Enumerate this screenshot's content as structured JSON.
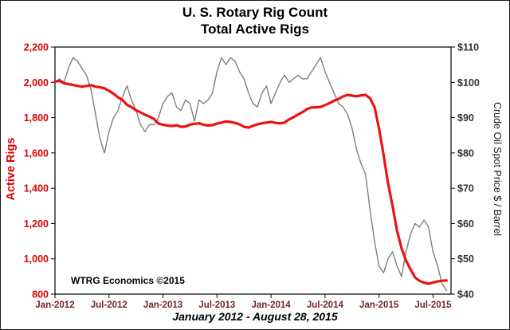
{
  "chart": {
    "title_line1": "U. S. Rotary Rig Count",
    "title_line2": "Total Active Rigs",
    "subtitle": "January 2012 - August 28, 2015",
    "attribution": "WTRG Economics  ©2015",
    "left_axis": {
      "label": "Active Rigs",
      "ticks": [
        "2,200",
        "2,000",
        "1,800",
        "1,600",
        "1,400",
        "1,200",
        "1,000",
        "800"
      ],
      "min": 800,
      "max": 2200,
      "color": "#dd0000"
    },
    "right_axis": {
      "label": "Crude Oil Spot Price $ / Barrel",
      "ticks": [
        "$110",
        "$100",
        "$90",
        "$80",
        "$70",
        "$60",
        "$50",
        "$40"
      ],
      "min": 40,
      "max": 110,
      "color": "#333333"
    },
    "x_axis": {
      "tick_labels": [
        "Jan-2012",
        "Jul-2012",
        "Jan-2013",
        "Jul-2013",
        "Jan-2014",
        "Jul-2014",
        "Jan-2015",
        "Jul-2015"
      ],
      "tick_positions": [
        0,
        6,
        12,
        18,
        24,
        30,
        36,
        42
      ],
      "domain": [
        0,
        44
      ],
      "color": "#7b2222"
    }
  },
  "chart_data": {
    "type": "line",
    "title": "U. S. Rotary Rig Count — Total Active Rigs",
    "x_unit": "months since Jan-2012 (0.5 = second half of month)",
    "x_start": 0,
    "x_step": 0.5,
    "grid": false,
    "legend": "none",
    "series": [
      {
        "name": "Crude Oil Spot Price",
        "axis": "right",
        "color": "#7f7f7f",
        "width": 1.4,
        "values": [
          100,
          101,
          100,
          104,
          107,
          106,
          104,
          102,
          98,
          91,
          84,
          80,
          86,
          90,
          92,
          96,
          99,
          95,
          92,
          88,
          86,
          88,
          88,
          90,
          94,
          96,
          97,
          93,
          92,
          95,
          94,
          89,
          95,
          94,
          95,
          97,
          103,
          107,
          105,
          107,
          106,
          103,
          101,
          97,
          94,
          93,
          97,
          99,
          94,
          97,
          100,
          102,
          100,
          101,
          102,
          101,
          101,
          103,
          105,
          107,
          103,
          100,
          97,
          94,
          93,
          91,
          87,
          81,
          77,
          74,
          64,
          55,
          48,
          46,
          50,
          52,
          48,
          45,
          52,
          57,
          60,
          59,
          61,
          59,
          52,
          48,
          43,
          41
        ]
      },
      {
        "name": "Active Rigs",
        "axis": "left",
        "color": "#ee1111",
        "width": 3.2,
        "values": [
          2005,
          2008,
          1995,
          1990,
          1985,
          1980,
          1975,
          1980,
          1984,
          1975,
          1972,
          1966,
          1952,
          1936,
          1915,
          1900,
          1872,
          1860,
          1842,
          1830,
          1816,
          1806,
          1792,
          1766,
          1760,
          1755,
          1752,
          1757,
          1748,
          1750,
          1760,
          1765,
          1768,
          1760,
          1755,
          1758,
          1766,
          1772,
          1778,
          1775,
          1770,
          1762,
          1748,
          1744,
          1754,
          1762,
          1768,
          1772,
          1776,
          1770,
          1768,
          1772,
          1790,
          1802,
          1818,
          1831,
          1848,
          1858,
          1858,
          1861,
          1871,
          1882,
          1896,
          1906,
          1920,
          1929,
          1925,
          1921,
          1926,
          1929,
          1910,
          1860,
          1740,
          1590,
          1430,
          1300,
          1160,
          1060,
          990,
          940,
          895,
          875,
          865,
          859,
          866,
          872,
          876,
          877
        ]
      }
    ]
  }
}
